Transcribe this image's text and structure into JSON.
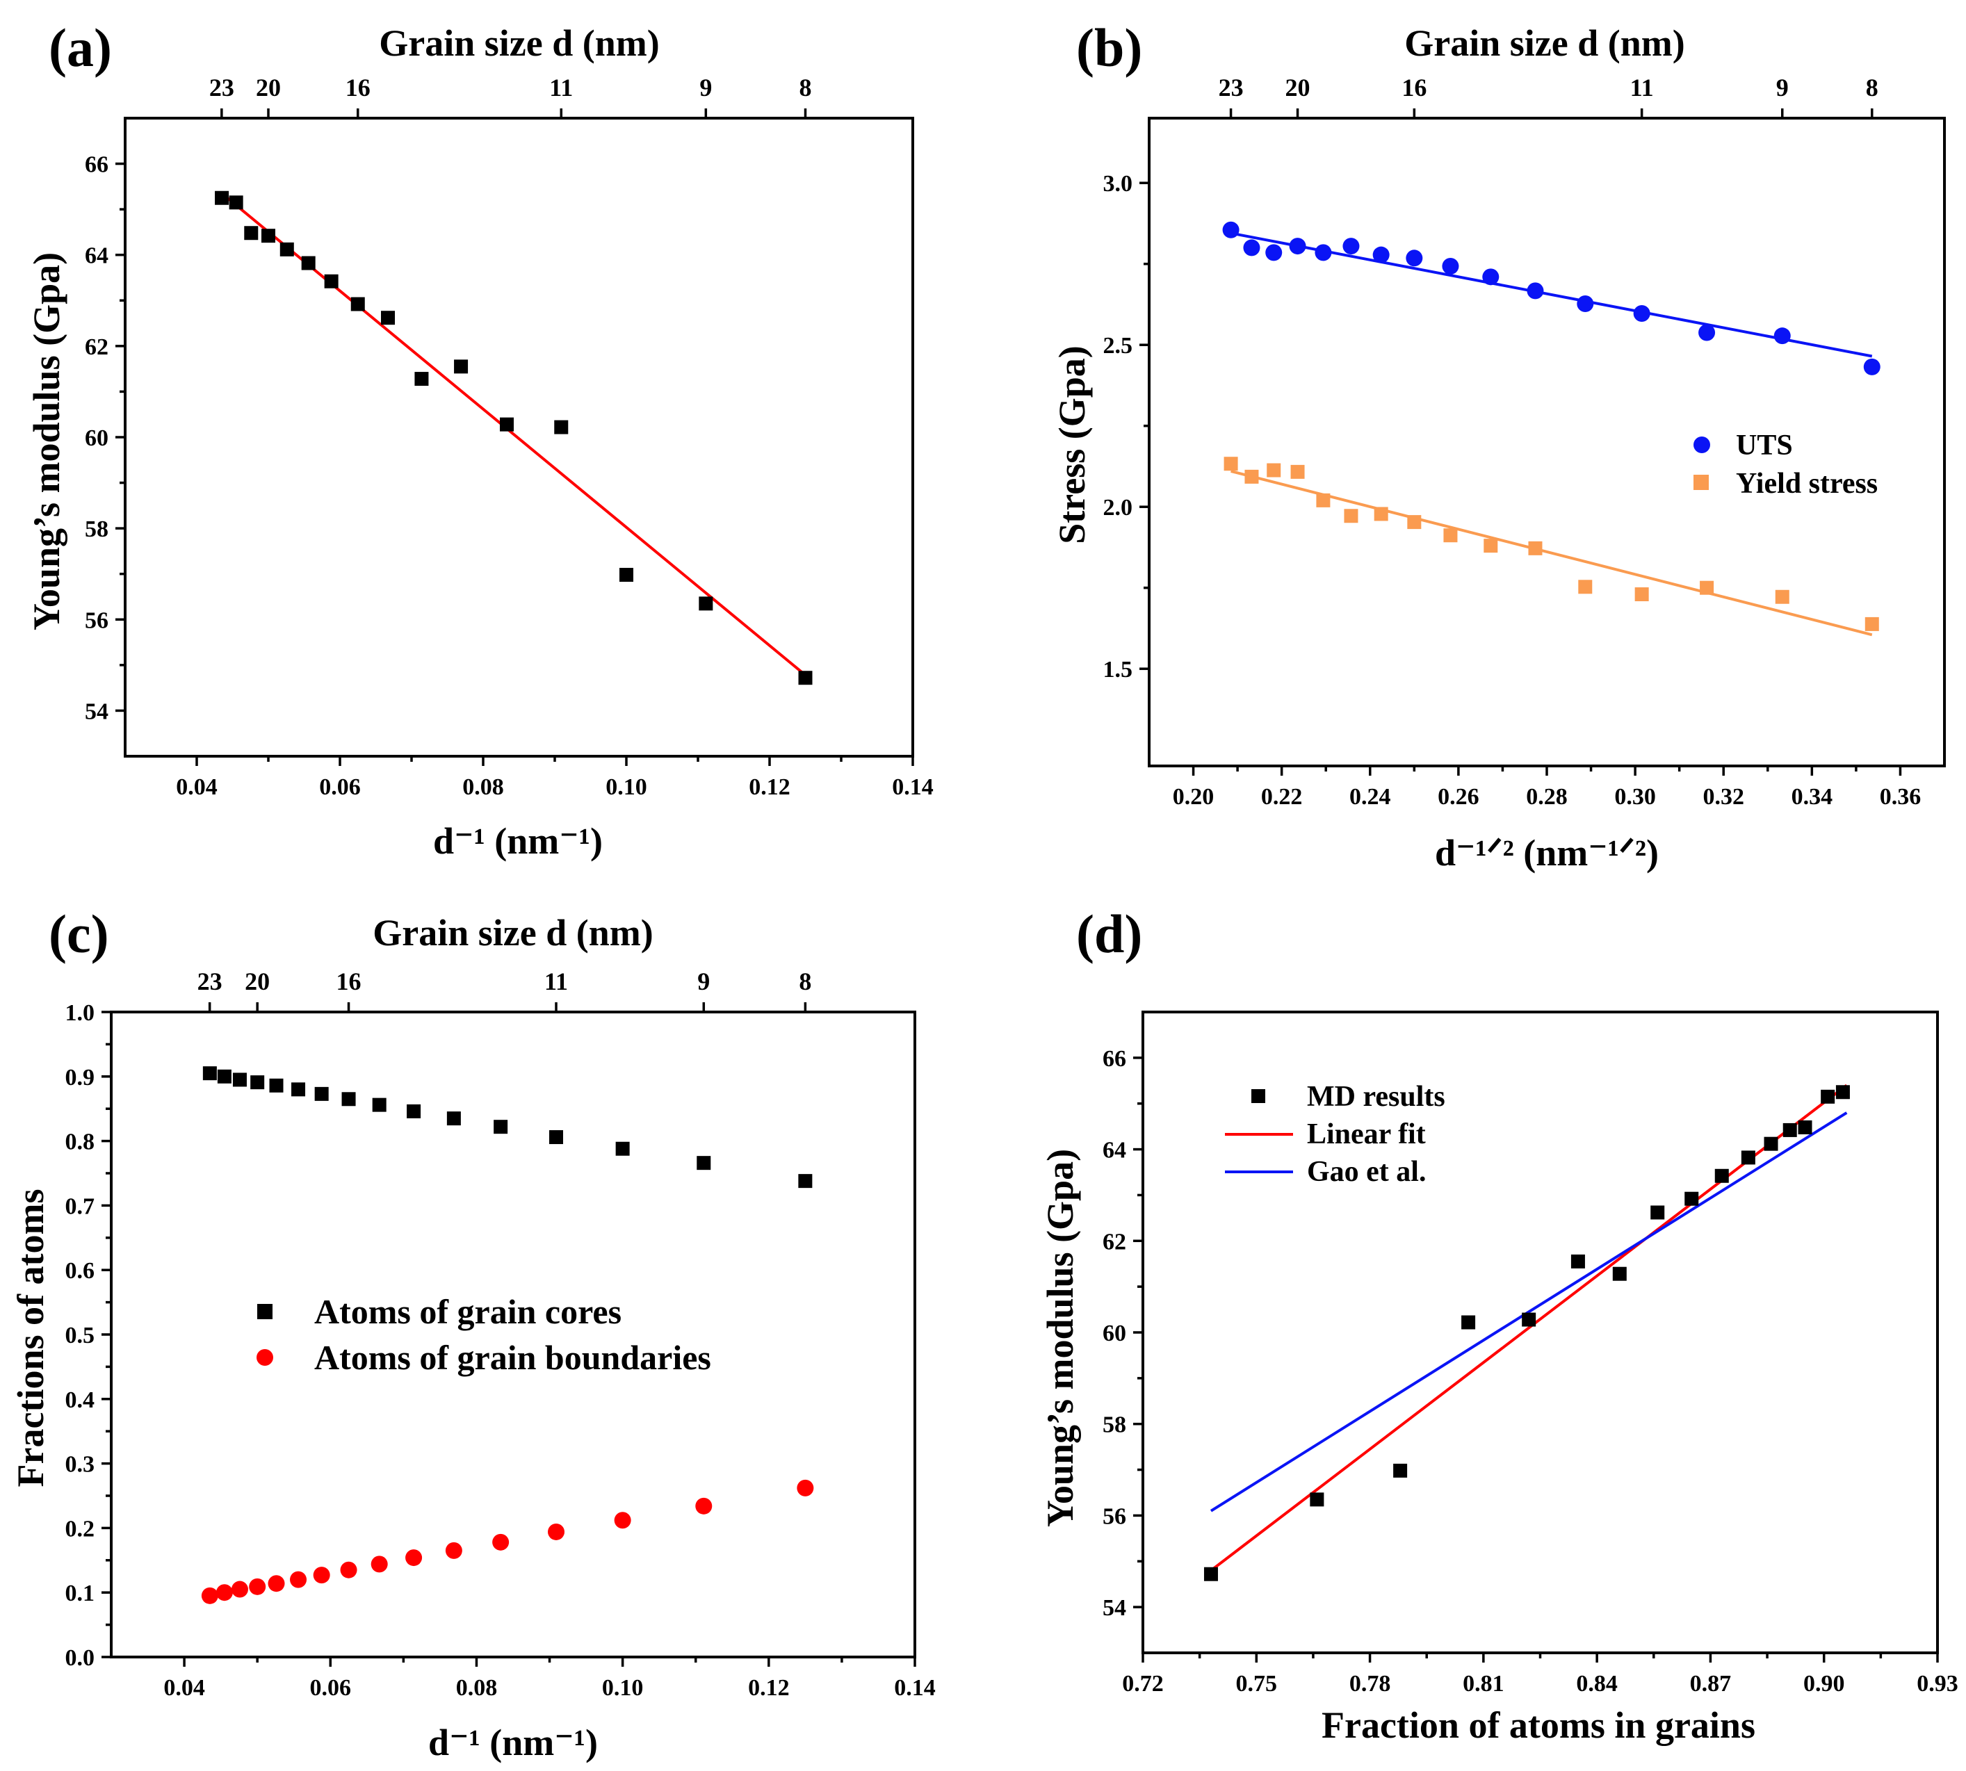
{
  "panels": {
    "a": {
      "label": "(a)",
      "top_title": "Grain size d (nm)",
      "xlabel": "d⁻¹ (nm⁻¹)",
      "ylabel": "Young’s modulus (Gpa)"
    },
    "b": {
      "label": "(b)",
      "top_title": "Grain size d (nm)",
      "xlabel": "d⁻¹ᐟ² (nm⁻¹ᐟ²)",
      "ylabel": "Stress (Gpa)"
    },
    "c": {
      "label": "(c)",
      "top_title": "Grain size d (nm)",
      "xlabel": "d⁻¹ (nm⁻¹)",
      "ylabel": "Fractions of atoms"
    },
    "d": {
      "label": "(d)",
      "xlabel": "Fraction of atoms in grains",
      "ylabel": "Young’s modulus (Gpa)"
    }
  },
  "chart_data": [
    {
      "id": "a",
      "type": "scatter",
      "title": "",
      "xlabel": "d⁻¹ (nm⁻¹)",
      "ylabel": "Young’s modulus (Gpa)",
      "top_axis_label": "Grain size d (nm)",
      "xlim": [
        0.03,
        0.14
      ],
      "ylim": [
        53,
        67
      ],
      "x_ticks": [
        "0.04",
        "0.06",
        "0.08",
        "0.10",
        "0.12",
        "0.14"
      ],
      "y_ticks": [
        "54",
        "56",
        "58",
        "60",
        "62",
        "64",
        "66"
      ],
      "top_ticks": [
        {
          "label": "23",
          "x": 0.04348
        },
        {
          "label": "20",
          "x": 0.05
        },
        {
          "label": "16",
          "x": 0.0625
        },
        {
          "label": "11",
          "x": 0.0909
        },
        {
          "label": "9",
          "x": 0.1111
        },
        {
          "label": "8",
          "x": 0.125
        }
      ],
      "series": [
        {
          "name": "Young’s modulus",
          "kind": "markers",
          "marker": "square",
          "color": "#000000",
          "x": [
            0.0435,
            0.0455,
            0.0476,
            0.05,
            0.0526,
            0.0556,
            0.0588,
            0.0625,
            0.0667,
            0.0714,
            0.0769,
            0.0833,
            0.0909,
            0.1,
            0.1111,
            0.125
          ],
          "y": [
            65.25,
            65.15,
            64.48,
            64.42,
            64.12,
            63.82,
            63.42,
            62.92,
            62.62,
            61.28,
            61.55,
            60.28,
            60.22,
            56.98,
            56.35,
            54.72
          ]
        },
        {
          "name": "Linear fit",
          "kind": "line",
          "color": "#ff0000",
          "x": [
            0.0435,
            0.125
          ],
          "y": [
            65.35,
            54.78
          ]
        }
      ]
    },
    {
      "id": "b",
      "type": "scatter",
      "title": "",
      "xlabel": "d⁻¹ᐟ² (nm⁻¹ᐟ²)",
      "ylabel": "Stress (Gpa)",
      "top_axis_label": "Grain size d (nm)",
      "xlim": [
        0.19,
        0.37
      ],
      "ylim": [
        1.2,
        3.2
      ],
      "x_ticks": [
        "0.20",
        "0.22",
        "0.24",
        "0.26",
        "0.28",
        "0.30",
        "0.32",
        "0.34",
        "0.36"
      ],
      "y_ticks": [
        "1.5",
        "2.0",
        "2.5",
        "3.0"
      ],
      "top_ticks": [
        {
          "label": "23",
          "x": 0.2085
        },
        {
          "label": "20",
          "x": 0.2236
        },
        {
          "label": "16",
          "x": 0.25
        },
        {
          "label": "11",
          "x": 0.3015
        },
        {
          "label": "9",
          "x": 0.3333
        },
        {
          "label": "8",
          "x": 0.3536
        }
      ],
      "legend": [
        "UTS",
        "Yield stress"
      ],
      "series": [
        {
          "name": "UTS",
          "kind": "markers",
          "marker": "circle",
          "color": "#0a14f5",
          "x": [
            0.2085,
            0.2132,
            0.2182,
            0.2236,
            0.2294,
            0.2357,
            0.2425,
            0.25,
            0.2582,
            0.2673,
            0.2774,
            0.2887,
            0.3015,
            0.3162,
            0.3333,
            0.3536
          ],
          "y": [
            2.855,
            2.8,
            2.785,
            2.805,
            2.785,
            2.805,
            2.778,
            2.768,
            2.743,
            2.71,
            2.667,
            2.627,
            2.597,
            2.538,
            2.528,
            2.432
          ]
        },
        {
          "name": "UTS fit",
          "kind": "line",
          "color": "#0a14f5",
          "x": [
            0.2085,
            0.3536
          ],
          "y": [
            2.845,
            2.465
          ]
        },
        {
          "name": "Yield stress",
          "kind": "markers",
          "marker": "square",
          "color": "#fa9b50",
          "x": [
            0.2085,
            0.2132,
            0.2182,
            0.2236,
            0.2294,
            0.2357,
            0.2425,
            0.25,
            0.2582,
            0.2673,
            0.2774,
            0.2887,
            0.3015,
            0.3162,
            0.3333,
            0.3536
          ],
          "y": [
            2.133,
            2.093,
            2.113,
            2.108,
            2.02,
            1.972,
            1.978,
            1.953,
            1.912,
            1.88,
            1.872,
            1.753,
            1.73,
            1.75,
            1.722,
            1.638
          ]
        },
        {
          "name": "Yield stress fit",
          "kind": "line",
          "color": "#fa9b50",
          "x": [
            0.2085,
            0.3536
          ],
          "y": [
            2.11,
            1.605
          ]
        }
      ]
    },
    {
      "id": "c",
      "type": "scatter",
      "title": "",
      "xlabel": "d⁻¹ (nm⁻¹)",
      "ylabel": "Fractions of atoms",
      "top_axis_label": "Grain size d (nm)",
      "xlim": [
        0.03,
        0.14
      ],
      "ylim": [
        0.0,
        1.0
      ],
      "x_ticks": [
        "0.04",
        "0.06",
        "0.08",
        "0.10",
        "0.12",
        "0.14"
      ],
      "y_ticks": [
        "0.0",
        "0.1",
        "0.2",
        "0.3",
        "0.4",
        "0.5",
        "0.6",
        "0.7",
        "0.8",
        "0.9",
        "1.0"
      ],
      "top_ticks": [
        {
          "label": "23",
          "x": 0.04348
        },
        {
          "label": "20",
          "x": 0.05
        },
        {
          "label": "16",
          "x": 0.0625
        },
        {
          "label": "11",
          "x": 0.0909
        },
        {
          "label": "9",
          "x": 0.1111
        },
        {
          "label": "8",
          "x": 0.125
        }
      ],
      "legend": [
        "Atoms of grain cores",
        "Atoms of grain boundaries"
      ],
      "series": [
        {
          "name": "Atoms of grain cores",
          "kind": "markers",
          "marker": "square",
          "color": "#000000",
          "x": [
            0.0435,
            0.0455,
            0.0476,
            0.05,
            0.0526,
            0.0556,
            0.0588,
            0.0625,
            0.0667,
            0.0714,
            0.0769,
            0.0833,
            0.0909,
            0.1,
            0.1111,
            0.125
          ],
          "y": [
            0.905,
            0.9,
            0.895,
            0.891,
            0.886,
            0.88,
            0.873,
            0.865,
            0.856,
            0.846,
            0.835,
            0.822,
            0.806,
            0.788,
            0.766,
            0.738
          ]
        },
        {
          "name": "Atoms of grain boundaries",
          "kind": "markers",
          "marker": "circle",
          "color": "#ff0000",
          "x": [
            0.0435,
            0.0455,
            0.0476,
            0.05,
            0.0526,
            0.0556,
            0.0588,
            0.0625,
            0.0667,
            0.0714,
            0.0769,
            0.0833,
            0.0909,
            0.1,
            0.1111,
            0.125
          ],
          "y": [
            0.095,
            0.1,
            0.105,
            0.109,
            0.114,
            0.12,
            0.127,
            0.135,
            0.144,
            0.154,
            0.165,
            0.178,
            0.194,
            0.212,
            0.234,
            0.262
          ]
        }
      ]
    },
    {
      "id": "d",
      "type": "scatter",
      "title": "",
      "xlabel": "Fraction of atoms in grains",
      "ylabel": "Young’s modulus (Gpa)",
      "xlim": [
        0.72,
        0.93
      ],
      "ylim": [
        53,
        67
      ],
      "x_ticks": [
        "0.72",
        "0.75",
        "0.78",
        "0.81",
        "0.84",
        "0.87",
        "0.90",
        "0.93"
      ],
      "y_ticks": [
        "54",
        "56",
        "58",
        "60",
        "62",
        "64",
        "66"
      ],
      "legend": [
        "MD results",
        "Linear fit",
        "Gao et al."
      ],
      "series": [
        {
          "name": "MD results",
          "kind": "markers",
          "marker": "square",
          "color": "#000000",
          "x": [
            0.738,
            0.766,
            0.788,
            0.806,
            0.822,
            0.835,
            0.846,
            0.856,
            0.865,
            0.873,
            0.88,
            0.886,
            0.891,
            0.895,
            0.901,
            0.905
          ],
          "y": [
            54.72,
            56.35,
            56.98,
            60.22,
            60.28,
            61.55,
            61.28,
            62.62,
            62.92,
            63.42,
            63.82,
            64.12,
            64.42,
            64.48,
            65.15,
            65.25
          ]
        },
        {
          "name": "Linear fit",
          "kind": "line",
          "color": "#ff0000",
          "x": [
            0.738,
            0.906
          ],
          "y": [
            54.8,
            65.4
          ]
        },
        {
          "name": "Gao et al.",
          "kind": "line",
          "color": "#0a14f5",
          "x": [
            0.738,
            0.906
          ],
          "y": [
            56.1,
            64.8
          ]
        }
      ]
    }
  ]
}
